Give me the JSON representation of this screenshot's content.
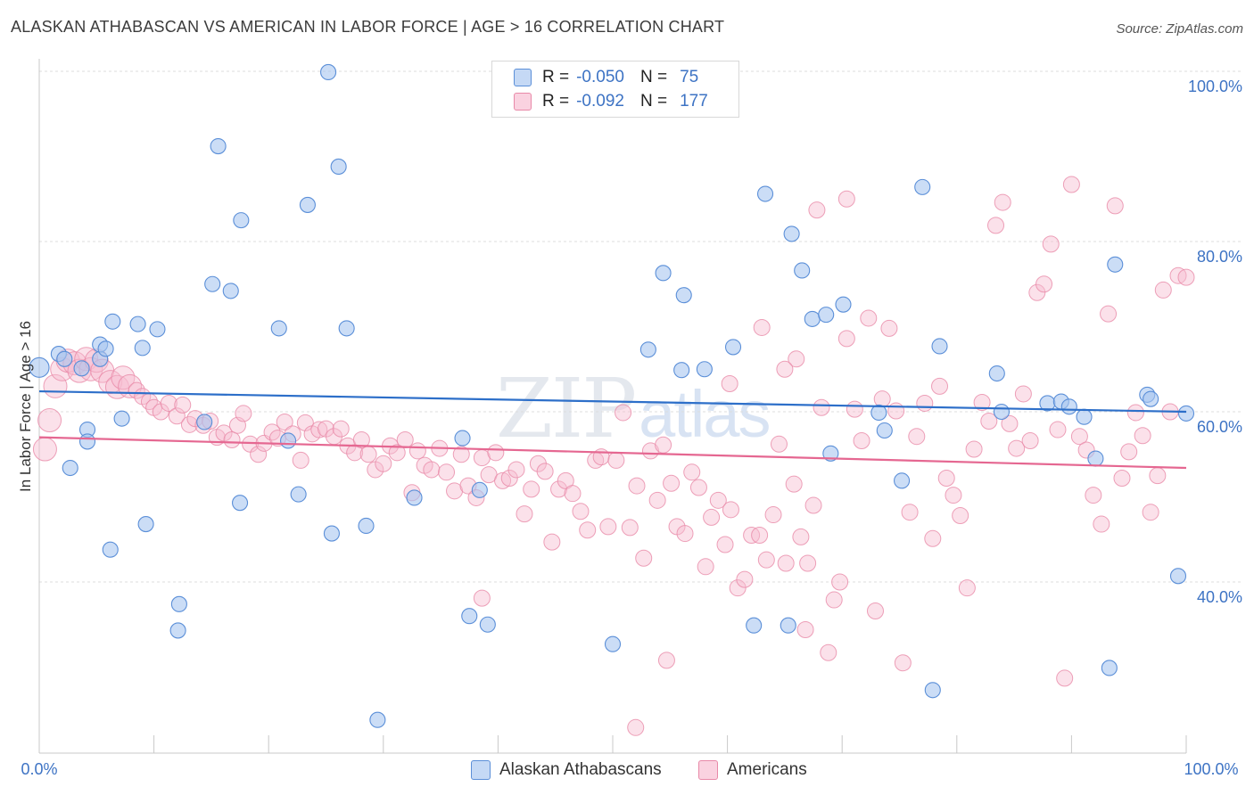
{
  "title": "ALASKAN ATHABASCAN VS AMERICAN IN LABOR FORCE | AGE > 16 CORRELATION CHART",
  "source": "Source: ZipAtlas.com",
  "watermark": {
    "zip": "ZIP",
    "atlas": "atlas"
  },
  "colors": {
    "blue_fill": "#a9c6f0",
    "blue_stroke": "#5b8fd8",
    "blue_line": "#2d6fc9",
    "pink_fill": "#f7bcd0",
    "pink_stroke": "#e889a8",
    "pink_line": "#e56791",
    "tick_text": "#3d73c4",
    "grid": "#dddddd"
  },
  "legend": {
    "rows": [
      {
        "r_label": "R =",
        "r_value": "-0.050",
        "n_label": "N =",
        "n_value": "75"
      },
      {
        "r_label": "R =",
        "r_value": "-0.092",
        "n_label": "N =",
        "n_value": "177"
      }
    ]
  },
  "bottom_legend": [
    {
      "label": "Alaskan Athabascans"
    },
    {
      "label": "Americans"
    }
  ],
  "chart_data": {
    "type": "scatter",
    "title": "ALASKAN ATHABASCAN VS AMERICAN IN LABOR FORCE | AGE > 16 CORRELATION CHART",
    "xlabel": "",
    "ylabel": "In Labor Force | Age > 16",
    "xlim": [
      0,
      100
    ],
    "ylim": [
      20,
      102
    ],
    "x_tick_labels": [
      "0.0%",
      "100.0%"
    ],
    "y_ticks": [
      40,
      60,
      80,
      100
    ],
    "y_tick_labels": [
      "40.0%",
      "60.0%",
      "80.0%",
      "100.0%"
    ],
    "grid": "horizontal dashed",
    "legend_position": "top-center",
    "series": [
      {
        "name": "Alaskan Athabascans",
        "color": "#a9c6f0",
        "trend": {
          "x": [
            0,
            100
          ],
          "y": [
            62.4,
            60.0
          ]
        },
        "points": [
          [
            0,
            65.2
          ],
          [
            1.7,
            66.8
          ],
          [
            2.2,
            66.2
          ],
          [
            3.7,
            65.1
          ],
          [
            5.3,
            66.2
          ],
          [
            4.2,
            57.9
          ],
          [
            4.2,
            56.5
          ],
          [
            2.7,
            53.4
          ],
          [
            5.3,
            67.9
          ],
          [
            5.8,
            67.4
          ],
          [
            6.4,
            70.6
          ],
          [
            7.2,
            59.2
          ],
          [
            8.6,
            70.3
          ],
          [
            9.0,
            67.5
          ],
          [
            10.3,
            69.7
          ],
          [
            9.3,
            46.8
          ],
          [
            6.2,
            43.8
          ],
          [
            12.2,
            37.4
          ],
          [
            12.1,
            34.3
          ],
          [
            14.4,
            58.8
          ],
          [
            15.1,
            75.0
          ],
          [
            15.6,
            91.2
          ],
          [
            16.7,
            74.2
          ],
          [
            17.6,
            82.5
          ],
          [
            17.5,
            49.3
          ],
          [
            20.9,
            69.8
          ],
          [
            21.7,
            56.6
          ],
          [
            22.6,
            50.3
          ],
          [
            23.4,
            84.3
          ],
          [
            25.2,
            99.9
          ],
          [
            25.5,
            45.7
          ],
          [
            26.1,
            88.8
          ],
          [
            26.8,
            69.8
          ],
          [
            28.5,
            46.6
          ],
          [
            29.5,
            23.8
          ],
          [
            32.7,
            49.9
          ],
          [
            36.9,
            56.9
          ],
          [
            37.5,
            36.0
          ],
          [
            38.4,
            50.8
          ],
          [
            39.1,
            35.0
          ],
          [
            50.0,
            32.7
          ],
          [
            53.1,
            67.3
          ],
          [
            54.4,
            76.3
          ],
          [
            56.2,
            73.7
          ],
          [
            58.0,
            65.0
          ],
          [
            60.5,
            67.6
          ],
          [
            63.3,
            85.6
          ],
          [
            65.6,
            80.9
          ],
          [
            66.5,
            76.6
          ],
          [
            67.4,
            70.9
          ],
          [
            68.6,
            71.4
          ],
          [
            69.0,
            55.1
          ],
          [
            70.1,
            72.6
          ],
          [
            73.2,
            59.9
          ],
          [
            73.7,
            57.8
          ],
          [
            75.2,
            51.9
          ],
          [
            77.0,
            86.4
          ],
          [
            77.9,
            27.3
          ],
          [
            78.5,
            67.7
          ],
          [
            83.9,
            60.0
          ],
          [
            83.5,
            64.5
          ],
          [
            87.9,
            61.0
          ],
          [
            89.1,
            61.2
          ],
          [
            91.1,
            59.4
          ],
          [
            92.1,
            54.5
          ],
          [
            93.3,
            29.9
          ],
          [
            93.8,
            77.3
          ],
          [
            96.6,
            62.0
          ],
          [
            96.9,
            61.5
          ],
          [
            100.0,
            59.8
          ],
          [
            99.3,
            40.7
          ],
          [
            65.3,
            34.9
          ],
          [
            62.3,
            34.9
          ],
          [
            89.8,
            60.6
          ],
          [
            56.0,
            64.9
          ]
        ]
      },
      {
        "name": "Americans",
        "color": "#f7bcd0",
        "trend": {
          "x": [
            0,
            100
          ],
          "y": [
            57.0,
            53.4
          ]
        },
        "points": [
          [
            0.5,
            55.6
          ],
          [
            0.9,
            59.0
          ],
          [
            1.4,
            63.0
          ],
          [
            2.0,
            65.0
          ],
          [
            2.5,
            66.0
          ],
          [
            3.1,
            65.7
          ],
          [
            3.5,
            64.8
          ],
          [
            4.1,
            66.2
          ],
          [
            4.5,
            65.0
          ],
          [
            5.0,
            66.0
          ],
          [
            5.5,
            64.8
          ],
          [
            6.2,
            63.5
          ],
          [
            6.8,
            62.9
          ],
          [
            7.3,
            64.0
          ],
          [
            7.9,
            63.0
          ],
          [
            8.5,
            62.5
          ],
          [
            9.0,
            61.8
          ],
          [
            9.6,
            61.2
          ],
          [
            10.0,
            60.5
          ],
          [
            10.6,
            60.0
          ],
          [
            11.3,
            61.0
          ],
          [
            12.0,
            59.5
          ],
          [
            12.5,
            60.8
          ],
          [
            13.1,
            58.5
          ],
          [
            13.6,
            59.2
          ],
          [
            14.3,
            58.4
          ],
          [
            14.9,
            58.9
          ],
          [
            15.5,
            57.0
          ],
          [
            16.1,
            57.5
          ],
          [
            16.8,
            56.7
          ],
          [
            17.3,
            58.4
          ],
          [
            17.8,
            59.8
          ],
          [
            18.4,
            56.2
          ],
          [
            19.1,
            55.0
          ],
          [
            19.6,
            56.3
          ],
          [
            20.3,
            57.6
          ],
          [
            20.8,
            56.9
          ],
          [
            21.4,
            58.8
          ],
          [
            22.1,
            57.4
          ],
          [
            22.8,
            54.3
          ],
          [
            23.2,
            58.7
          ],
          [
            23.8,
            57.4
          ],
          [
            24.4,
            57.9
          ],
          [
            25.0,
            58.0
          ],
          [
            25.7,
            57.1
          ],
          [
            26.3,
            58.0
          ],
          [
            26.9,
            56.0
          ],
          [
            27.5,
            55.2
          ],
          [
            28.1,
            56.7
          ],
          [
            28.7,
            55.0
          ],
          [
            29.3,
            53.2
          ],
          [
            30.0,
            53.9
          ],
          [
            30.6,
            56.0
          ],
          [
            31.2,
            55.2
          ],
          [
            31.9,
            56.7
          ],
          [
            32.5,
            50.5
          ],
          [
            33.0,
            55.4
          ],
          [
            33.6,
            53.7
          ],
          [
            34.2,
            53.2
          ],
          [
            34.9,
            55.7
          ],
          [
            35.5,
            52.9
          ],
          [
            36.2,
            50.7
          ],
          [
            36.8,
            55.0
          ],
          [
            37.4,
            51.3
          ],
          [
            38.1,
            49.9
          ],
          [
            38.6,
            54.6
          ],
          [
            39.2,
            52.6
          ],
          [
            39.8,
            55.2
          ],
          [
            40.4,
            51.9
          ],
          [
            41.0,
            52.2
          ],
          [
            41.6,
            53.2
          ],
          [
            42.3,
            48.0
          ],
          [
            42.9,
            50.9
          ],
          [
            43.5,
            53.9
          ],
          [
            44.1,
            53.0
          ],
          [
            44.7,
            44.7
          ],
          [
            45.3,
            50.9
          ],
          [
            45.9,
            51.9
          ],
          [
            46.5,
            50.4
          ],
          [
            47.2,
            48.3
          ],
          [
            47.8,
            46.1
          ],
          [
            48.5,
            54.3
          ],
          [
            49.0,
            54.7
          ],
          [
            49.6,
            46.5
          ],
          [
            50.3,
            54.3
          ],
          [
            50.9,
            59.9
          ],
          [
            51.5,
            46.4
          ],
          [
            52.1,
            51.3
          ],
          [
            52.7,
            42.8
          ],
          [
            53.3,
            55.4
          ],
          [
            53.9,
            49.6
          ],
          [
            54.4,
            56.1
          ],
          [
            55.1,
            51.6
          ],
          [
            55.6,
            46.5
          ],
          [
            56.3,
            45.7
          ],
          [
            56.9,
            52.9
          ],
          [
            57.5,
            51.1
          ],
          [
            58.1,
            41.8
          ],
          [
            58.6,
            47.6
          ],
          [
            59.2,
            49.6
          ],
          [
            59.8,
            44.4
          ],
          [
            60.3,
            48.5
          ],
          [
            60.9,
            39.3
          ],
          [
            61.5,
            40.3
          ],
          [
            62.1,
            45.5
          ],
          [
            62.8,
            45.5
          ],
          [
            63.4,
            42.6
          ],
          [
            64.0,
            47.9
          ],
          [
            64.5,
            56.2
          ],
          [
            65.1,
            42.2
          ],
          [
            65.8,
            51.5
          ],
          [
            66.4,
            45.3
          ],
          [
            67.0,
            42.2
          ],
          [
            67.5,
            49.0
          ],
          [
            68.2,
            60.5
          ],
          [
            68.8,
            31.7
          ],
          [
            69.3,
            37.9
          ],
          [
            69.8,
            40.0
          ],
          [
            70.4,
            68.6
          ],
          [
            71.1,
            60.3
          ],
          [
            71.7,
            56.6
          ],
          [
            72.3,
            71.0
          ],
          [
            72.9,
            36.6
          ],
          [
            73.5,
            61.5
          ],
          [
            74.1,
            69.8
          ],
          [
            74.7,
            60.1
          ],
          [
            75.3,
            30.5
          ],
          [
            75.9,
            48.2
          ],
          [
            76.5,
            57.1
          ],
          [
            77.2,
            61.0
          ],
          [
            77.9,
            45.1
          ],
          [
            78.5,
            63.0
          ],
          [
            79.1,
            52.2
          ],
          [
            79.7,
            50.2
          ],
          [
            80.3,
            47.8
          ],
          [
            80.9,
            39.3
          ],
          [
            81.5,
            55.6
          ],
          [
            82.2,
            61.1
          ],
          [
            82.8,
            58.9
          ],
          [
            83.4,
            81.9
          ],
          [
            84.0,
            84.6
          ],
          [
            84.6,
            58.6
          ],
          [
            85.2,
            55.7
          ],
          [
            85.8,
            62.1
          ],
          [
            86.4,
            56.6
          ],
          [
            87.0,
            74.0
          ],
          [
            87.6,
            75.0
          ],
          [
            88.2,
            79.7
          ],
          [
            88.8,
            57.9
          ],
          [
            89.4,
            28.7
          ],
          [
            90.0,
            86.7
          ],
          [
            90.7,
            57.1
          ],
          [
            91.3,
            55.5
          ],
          [
            91.9,
            50.2
          ],
          [
            92.6,
            46.8
          ],
          [
            93.2,
            71.5
          ],
          [
            93.8,
            84.2
          ],
          [
            94.4,
            52.2
          ],
          [
            95.0,
            55.3
          ],
          [
            95.6,
            59.9
          ],
          [
            96.2,
            57.2
          ],
          [
            96.9,
            48.2
          ],
          [
            97.5,
            52.5
          ],
          [
            98.0,
            74.3
          ],
          [
            98.6,
            60.0
          ],
          [
            99.3,
            76.0
          ],
          [
            100.0,
            75.8
          ],
          [
            60.2,
            63.3
          ],
          [
            67.8,
            83.7
          ],
          [
            70.4,
            85.0
          ],
          [
            63.0,
            69.9
          ],
          [
            66.0,
            66.2
          ],
          [
            65.0,
            65.0
          ],
          [
            38.6,
            38.1
          ],
          [
            52.0,
            22.9
          ],
          [
            54.7,
            30.8
          ],
          [
            66.8,
            34.4
          ]
        ]
      }
    ]
  },
  "x_axis_labels": {
    "left": "0.0%",
    "right": "100.0%"
  }
}
